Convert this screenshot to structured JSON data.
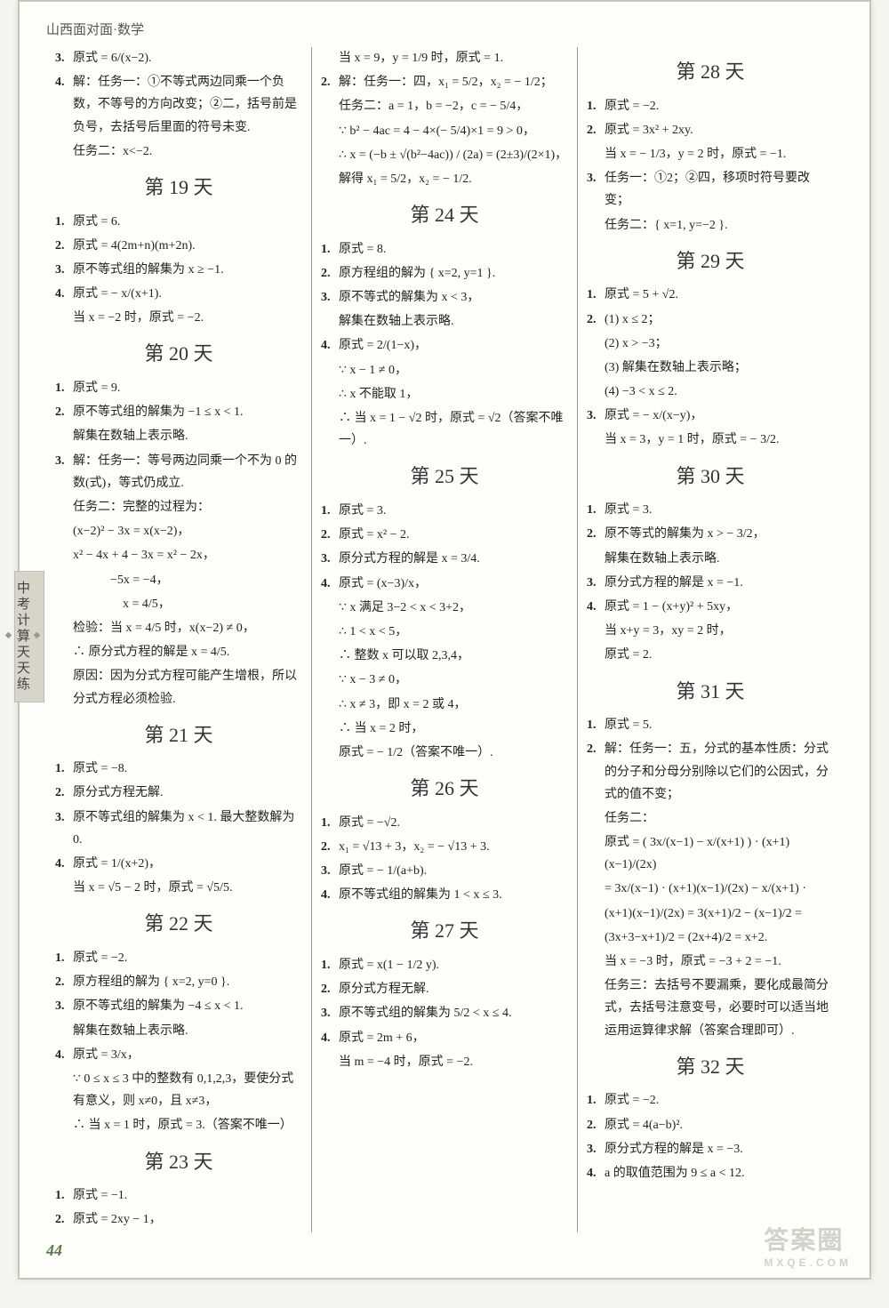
{
  "header": "山西面对面·数学",
  "side_tab": "中考计算天天练",
  "page_number": "44",
  "watermark_main": "答案圈",
  "watermark_sub": "MXQE.COM",
  "col1": {
    "pre": [
      {
        "n": "3.",
        "t": "原式 = 6/(x−2)."
      },
      {
        "n": "4.",
        "t": "解：任务一：①不等式两边同乘一个负数，不等号的方向改变；②二，括号前是负号，去括号后里面的符号未变."
      },
      {
        "n": "",
        "t": "任务二：x<−2."
      }
    ],
    "d19_title": "第 19 天",
    "d19": [
      {
        "n": "1.",
        "t": "原式 = 6."
      },
      {
        "n": "2.",
        "t": "原式 = 4(2m+n)(m+2n)."
      },
      {
        "n": "3.",
        "t": "原不等式组的解集为 x ≥ −1."
      },
      {
        "n": "4.",
        "t": "原式 = − x/(x+1)."
      },
      {
        "n": "",
        "t": "当 x = −2 时，原式 = −2."
      }
    ],
    "d20_title": "第 20 天",
    "d20": [
      {
        "n": "1.",
        "t": "原式 = 9."
      },
      {
        "n": "2.",
        "t": "原不等式组的解集为 −1 ≤ x < 1."
      },
      {
        "n": "",
        "t": "解集在数轴上表示略."
      },
      {
        "n": "3.",
        "t": "解：任务一：等号两边同乘一个不为 0 的数(式)，等式仍成立."
      },
      {
        "n": "",
        "t": "任务二：完整的过程为："
      },
      {
        "n": "",
        "t": "(x−2)² − 3x = x(x−2)，"
      },
      {
        "n": "",
        "t": "x² − 4x + 4 − 3x = x² − 2x，"
      },
      {
        "n": "",
        "t": "　　　−5x = −4，"
      },
      {
        "n": "",
        "t": "　　　　x = 4/5，"
      },
      {
        "n": "",
        "t": "检验：当 x = 4/5 时，x(x−2) ≠ 0，"
      },
      {
        "n": "",
        "t": "∴ 原分式方程的解是 x = 4/5."
      },
      {
        "n": "",
        "t": "原因：因为分式方程可能产生增根，所以分式方程必须检验."
      }
    ],
    "d21_title": "第 21 天",
    "d21": [
      {
        "n": "1.",
        "t": "原式 = −8."
      },
      {
        "n": "2.",
        "t": "原分式方程无解."
      },
      {
        "n": "3.",
        "t": "原不等式组的解集为 x < 1. 最大整数解为 0."
      },
      {
        "n": "4.",
        "t": "原式 = 1/(x+2)，"
      },
      {
        "n": "",
        "t": "当 x = √5 − 2 时，原式 = √5/5."
      }
    ],
    "d22_title": "第 22 天",
    "d22": [
      {
        "n": "1.",
        "t": "原式 = −2."
      },
      {
        "n": "2.",
        "t": "原方程组的解为 { x=2, y=0 }."
      },
      {
        "n": "3.",
        "t": "原不等式组的解集为 −4 ≤ x < 1."
      },
      {
        "n": "",
        "t": "解集在数轴上表示略."
      },
      {
        "n": "4.",
        "t": "原式 = 3/x，"
      },
      {
        "n": "",
        "t": "∵ 0 ≤ x ≤ 3 中的整数有 0,1,2,3，要使分式有意义，则 x≠0，且 x≠3，"
      },
      {
        "n": "",
        "t": "∴ 当 x = 1 时，原式 = 3.（答案不唯一）"
      }
    ],
    "d23_title": "第 23 天",
    "d23": [
      {
        "n": "1.",
        "t": "原式 = −1."
      },
      {
        "n": "2.",
        "t": "原式 = 2xy − 1，"
      }
    ]
  },
  "col2": {
    "pre": [
      {
        "n": "",
        "t": "当 x = 9，y = 1/9 时，原式 = 1."
      },
      {
        "n": "2.",
        "t": "解：任务一：四，x₁ = 5/2，x₂ = − 1/2；"
      },
      {
        "n": "",
        "t": "任务二：a = 1，b = −2，c = − 5/4，"
      },
      {
        "n": "",
        "t": "∵ b² − 4ac = 4 − 4×(− 5/4)×1 = 9 > 0，"
      },
      {
        "n": "",
        "t": "∴ x = (−b ± √(b²−4ac)) / (2a) = (2±3)/(2×1)，"
      },
      {
        "n": "",
        "t": "解得 x₁ = 5/2，x₂ = − 1/2."
      }
    ],
    "d24_title": "第 24 天",
    "d24": [
      {
        "n": "1.",
        "t": "原式 = 8."
      },
      {
        "n": "2.",
        "t": "原方程组的解为 { x=2, y=1 }."
      },
      {
        "n": "3.",
        "t": "原不等式的解集为 x < 3，"
      },
      {
        "n": "",
        "t": "解集在数轴上表示略."
      },
      {
        "n": "4.",
        "t": "原式 = 2/(1−x)，"
      },
      {
        "n": "",
        "t": "∵ x − 1 ≠ 0，"
      },
      {
        "n": "",
        "t": "∴ x 不能取 1，"
      },
      {
        "n": "",
        "t": "∴ 当 x = 1 − √2 时，原式 = √2（答案不唯一）."
      }
    ],
    "d25_title": "第 25 天",
    "d25": [
      {
        "n": "1.",
        "t": "原式 = 3."
      },
      {
        "n": "2.",
        "t": "原式 = x² − 2."
      },
      {
        "n": "3.",
        "t": "原分式方程的解是 x = 3/4."
      },
      {
        "n": "4.",
        "t": "原式 = (x−3)/x，"
      },
      {
        "n": "",
        "t": "∵ x 满足 3−2 < x < 3+2，"
      },
      {
        "n": "",
        "t": "∴ 1 < x < 5，"
      },
      {
        "n": "",
        "t": "∴ 整数 x 可以取 2,3,4，"
      },
      {
        "n": "",
        "t": "∵ x − 3 ≠ 0，"
      },
      {
        "n": "",
        "t": "∴ x ≠ 3，即 x = 2 或 4，"
      },
      {
        "n": "",
        "t": "∴ 当 x = 2 时，"
      },
      {
        "n": "",
        "t": "原式 = − 1/2（答案不唯一）."
      }
    ],
    "d26_title": "第 26 天",
    "d26": [
      {
        "n": "1.",
        "t": "原式 = −√2."
      },
      {
        "n": "2.",
        "t": "x₁ = √13 + 3，x₂ = − √13 + 3."
      },
      {
        "n": "3.",
        "t": "原式 = − 1/(a+b)."
      },
      {
        "n": "4.",
        "t": "原不等式组的解集为 1 < x ≤ 3."
      }
    ],
    "d27_title": "第 27 天",
    "d27": [
      {
        "n": "1.",
        "t": "原式 = x(1 − 1/2 y)."
      },
      {
        "n": "2.",
        "t": "原分式方程无解."
      },
      {
        "n": "3.",
        "t": "原不等式组的解集为 5/2 < x ≤ 4."
      },
      {
        "n": "4.",
        "t": "原式 = 2m + 6，"
      },
      {
        "n": "",
        "t": "当 m = −4 时，原式 = −2."
      }
    ]
  },
  "col3": {
    "d28_title": "第 28 天",
    "d28": [
      {
        "n": "1.",
        "t": "原式 = −2."
      },
      {
        "n": "2.",
        "t": "原式 = 3x² + 2xy."
      },
      {
        "n": "",
        "t": "当 x = − 1/3，y = 2 时，原式 = −1."
      },
      {
        "n": "3.",
        "t": "任务一：①2；②四，移项时符号要改变；"
      },
      {
        "n": "",
        "t": "任务二：{ x=1, y=−2 }."
      }
    ],
    "d29_title": "第 29 天",
    "d29": [
      {
        "n": "1.",
        "t": "原式 = 5 + √2."
      },
      {
        "n": "2.",
        "t": "(1) x ≤ 2；"
      },
      {
        "n": "",
        "t": "(2) x > −3；"
      },
      {
        "n": "",
        "t": "(3) 解集在数轴上表示略；"
      },
      {
        "n": "",
        "t": "(4) −3 < x ≤ 2."
      },
      {
        "n": "3.",
        "t": "原式 = − x/(x−y)，"
      },
      {
        "n": "",
        "t": "当 x = 3，y = 1 时，原式 = − 3/2."
      }
    ],
    "d30_title": "第 30 天",
    "d30": [
      {
        "n": "1.",
        "t": "原式 = 3."
      },
      {
        "n": "2.",
        "t": "原不等式的解集为 x > − 3/2，"
      },
      {
        "n": "",
        "t": "解集在数轴上表示略."
      },
      {
        "n": "3.",
        "t": "原分式方程的解是 x = −1."
      },
      {
        "n": "4.",
        "t": "原式 = 1 − (x+y)² + 5xy，"
      },
      {
        "n": "",
        "t": "当 x+y = 3，xy = 2 时，"
      },
      {
        "n": "",
        "t": "原式 = 2."
      }
    ],
    "d31_title": "第 31 天",
    "d31": [
      {
        "n": "1.",
        "t": "原式 = 5."
      },
      {
        "n": "2.",
        "t": "解：任务一：五，分式的基本性质：分式的分子和分母分别除以它们的公因式，分式的值不变；"
      },
      {
        "n": "",
        "t": "任务二："
      },
      {
        "n": "",
        "t": "原式 = ( 3x/(x−1) − x/(x+1) ) · (x+1)(x−1)/(2x)"
      },
      {
        "n": "",
        "t": "= 3x/(x−1) · (x+1)(x−1)/(2x) − x/(x+1) ·"
      },
      {
        "n": "",
        "t": "(x+1)(x−1)/(2x) = 3(x+1)/2 − (x−1)/2 ="
      },
      {
        "n": "",
        "t": "(3x+3−x+1)/2 = (2x+4)/2 = x+2."
      },
      {
        "n": "",
        "t": "当 x = −3 时，原式 = −3 + 2 = −1."
      },
      {
        "n": "",
        "t": "任务三：去括号不要漏乘，要化成最简分式，去括号注意变号，必要时可以适当地运用运算律求解（答案合理即可）."
      }
    ],
    "d32_title": "第 32 天",
    "d32": [
      {
        "n": "1.",
        "t": "原式 = −2."
      },
      {
        "n": "2.",
        "t": "原式 = 4(a−b)²."
      },
      {
        "n": "3.",
        "t": "原分式方程的解是 x = −3."
      },
      {
        "n": "4.",
        "t": "a 的取值范围为 9 ≤ a < 12."
      }
    ]
  }
}
